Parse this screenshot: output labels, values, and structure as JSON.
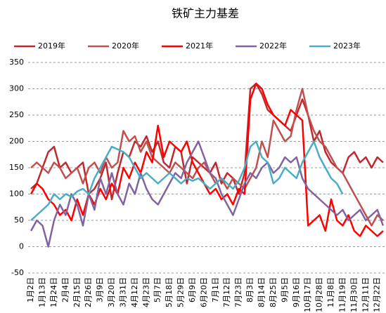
{
  "chart_data": {
    "type": "line",
    "title": "铁矿主力基差",
    "categories": [
      "1月2日",
      null,
      "1月13日",
      null,
      "1月24日",
      null,
      "2月4日",
      null,
      "2月15日",
      null,
      "2月26日",
      null,
      "3月9日",
      null,
      "3月20日",
      null,
      "3月31日",
      null,
      "4月12日",
      null,
      "4月23日",
      null,
      "5月7日",
      null,
      "5月18日",
      null,
      "5月29日",
      null,
      "6月9日",
      null,
      "6月20日",
      null,
      "7月1日",
      null,
      "7月12日",
      null,
      "7月23日",
      null,
      "8月3日",
      null,
      "8月14日",
      null,
      "8月25日",
      null,
      "9月5日",
      null,
      "9月16日",
      null,
      "10月17日",
      null,
      "10月28日",
      null,
      "11月8日",
      null,
      "11月19日",
      null,
      "11月30日",
      null,
      "12月11日",
      null,
      "12月22日",
      null
    ],
    "series": [
      {
        "name": "2019年",
        "color": "#c0282d",
        "values": [
          110,
          120,
          150,
          180,
          190,
          150,
          160,
          140,
          150,
          160,
          100,
          110,
          130,
          160,
          90,
          140,
          180,
          170,
          200,
          190,
          210,
          180,
          200,
          160,
          150,
          190,
          180,
          120,
          170,
          160,
          150,
          140,
          160,
          120,
          140,
          130,
          100,
          140,
          300,
          310,
          290,
          260,
          250,
          240,
          230,
          220,
          250,
          280,
          250,
          200,
          220,
          180,
          160,
          150,
          140,
          170,
          180,
          160,
          170,
          150,
          170,
          160
        ]
      },
      {
        "name": "2020年",
        "color": "#c0504d",
        "values": [
          150,
          160,
          150,
          140,
          160,
          150,
          130,
          140,
          150,
          120,
          150,
          160,
          140,
          170,
          150,
          160,
          220,
          200,
          210,
          180,
          200,
          170,
          160,
          150,
          140,
          160,
          150,
          140,
          130,
          150,
          160,
          140,
          120,
          130,
          110,
          130,
          120,
          110,
          130,
          150,
          200,
          170,
          240,
          220,
          200,
          210,
          260,
          300,
          250,
          220,
          200,
          190,
          170,
          150,
          140,
          120,
          100,
          80,
          60,
          40,
          60,
          50
        ]
      },
      {
        "name": "2021年",
        "color": "#ff0000",
        "values": [
          100,
          120,
          110,
          90,
          80,
          60,
          70,
          50,
          90,
          60,
          100,
          80,
          110,
          90,
          120,
          100,
          150,
          130,
          160,
          140,
          180,
          160,
          230,
          170,
          200,
          190,
          180,
          200,
          160,
          140,
          120,
          100,
          110,
          90,
          100,
          80,
          110,
          100,
          280,
          310,
          300,
          270,
          250,
          240,
          230,
          260,
          250,
          240,
          40,
          50,
          60,
          30,
          90,
          50,
          40,
          60,
          30,
          20,
          40,
          30,
          20,
          30
        ]
      },
      {
        "name": "2022年",
        "color": "#8064a2",
        "values": [
          30,
          50,
          40,
          0,
          50,
          80,
          60,
          100,
          80,
          40,
          100,
          70,
          130,
          100,
          140,
          100,
          80,
          120,
          100,
          140,
          110,
          90,
          80,
          100,
          120,
          140,
          130,
          160,
          180,
          200,
          170,
          140,
          130,
          100,
          80,
          60,
          90,
          120,
          140,
          130,
          150,
          160,
          140,
          150,
          170,
          160,
          170,
          130,
          110,
          100,
          90,
          80,
          70,
          60,
          70,
          50,
          60,
          70,
          50,
          60,
          70,
          40
        ]
      },
      {
        "name": "2023年",
        "color": "#4bacc6",
        "values": [
          50,
          60,
          70,
          80,
          100,
          90,
          100,
          95,
          105,
          110,
          100,
          130,
          150,
          170,
          190,
          185,
          180,
          170,
          150,
          130,
          140,
          130,
          120,
          130,
          140,
          130,
          120,
          130,
          125,
          130,
          120,
          110,
          120,
          130,
          120,
          110,
          125,
          150,
          190,
          200,
          170,
          160,
          120,
          130,
          150,
          140,
          130,
          160,
          180,
          200,
          170,
          150,
          130,
          120,
          100,
          null,
          null,
          null,
          null,
          null,
          null,
          null
        ]
      }
    ],
    "ylim": [
      -50,
      350
    ],
    "yticks": [
      -50,
      0,
      50,
      100,
      150,
      200,
      250,
      300,
      350
    ],
    "grid": true
  }
}
